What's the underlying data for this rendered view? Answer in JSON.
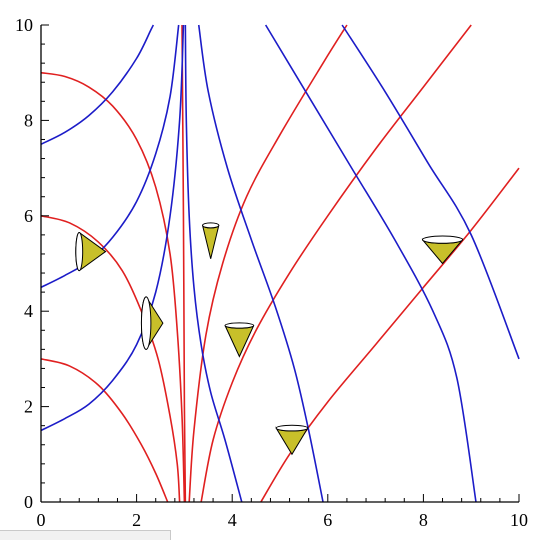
{
  "chart_data": {
    "type": "line",
    "title": "",
    "xlabel": "",
    "ylabel": "",
    "xlim": [
      0,
      10
    ],
    "ylim": [
      0,
      10
    ],
    "xticks": [
      0,
      2,
      4,
      6,
      8,
      10
    ],
    "yticks": [
      0,
      2,
      4,
      6,
      8,
      10
    ],
    "x_tick_labels": [
      "0",
      "2",
      "4",
      "6",
      "8",
      "10"
    ],
    "y_tick_labels": [
      "0",
      "2",
      "4",
      "6",
      "8",
      "10"
    ],
    "grid": false,
    "colors": {
      "red": "#e02020",
      "blue": "#1c1cc8",
      "cone_fill": "#c8c02a"
    },
    "series": [
      {
        "color": "red",
        "points": [
          [
            0,
            9.0
          ],
          [
            0.5,
            8.92
          ],
          [
            1,
            8.7
          ],
          [
            1.5,
            8.3
          ],
          [
            2,
            7.6
          ],
          [
            2.4,
            6.6
          ],
          [
            2.7,
            5.2
          ],
          [
            2.85,
            3.6
          ],
          [
            2.95,
            1.8
          ],
          [
            3.0,
            0
          ]
        ]
      },
      {
        "color": "red",
        "points": [
          [
            0,
            6.0
          ],
          [
            0.6,
            5.85
          ],
          [
            1.2,
            5.45
          ],
          [
            1.7,
            4.85
          ],
          [
            2.1,
            4.0
          ],
          [
            2.45,
            3.0
          ],
          [
            2.7,
            1.8
          ],
          [
            2.85,
            0.8
          ],
          [
            2.9,
            0
          ]
        ]
      },
      {
        "color": "red",
        "points": [
          [
            0,
            3.0
          ],
          [
            0.6,
            2.85
          ],
          [
            1.2,
            2.45
          ],
          [
            1.7,
            1.85
          ],
          [
            2.1,
            1.2
          ],
          [
            2.4,
            0.6
          ],
          [
            2.65,
            0
          ]
        ]
      },
      {
        "color": "red",
        "points": [
          [
            2.95,
            10.0
          ],
          [
            2.98,
            6.0
          ],
          [
            3.0,
            2.0
          ],
          [
            3.02,
            0
          ]
        ]
      },
      {
        "color": "red",
        "points": [
          [
            3.1,
            0
          ],
          [
            3.2,
            1.5
          ],
          [
            3.45,
            3.5
          ],
          [
            3.8,
            5.0
          ],
          [
            4.3,
            6.4
          ],
          [
            5.0,
            7.7
          ],
          [
            5.9,
            9.2
          ],
          [
            6.4,
            10.0
          ]
        ]
      },
      {
        "color": "red",
        "points": [
          [
            3.35,
            0
          ],
          [
            3.6,
            1.3
          ],
          [
            4.0,
            2.5
          ],
          [
            4.5,
            3.6
          ],
          [
            5.2,
            4.8
          ],
          [
            6.0,
            6.0
          ],
          [
            7.0,
            7.4
          ],
          [
            8.0,
            8.7
          ],
          [
            9.0,
            10.0
          ]
        ]
      },
      {
        "color": "red",
        "points": [
          [
            4.6,
            0
          ],
          [
            5.2,
            1.0
          ],
          [
            6.0,
            2.1
          ],
          [
            7.0,
            3.3
          ],
          [
            8.0,
            4.5
          ],
          [
            9.0,
            5.7
          ],
          [
            10.0,
            7.0
          ]
        ]
      },
      {
        "color": "blue",
        "points": [
          [
            0,
            7.5
          ],
          [
            0.5,
            7.75
          ],
          [
            1.0,
            8.1
          ],
          [
            1.5,
            8.6
          ],
          [
            2.0,
            9.3
          ],
          [
            2.3,
            9.9
          ],
          [
            2.35,
            10.0
          ]
        ]
      },
      {
        "color": "blue",
        "points": [
          [
            0,
            4.5
          ],
          [
            0.5,
            4.75
          ],
          [
            1.0,
            5.05
          ],
          [
            1.5,
            5.55
          ],
          [
            2.0,
            6.3
          ],
          [
            2.4,
            7.3
          ],
          [
            2.7,
            8.5
          ],
          [
            2.88,
            10.0
          ]
        ]
      },
      {
        "color": "blue",
        "points": [
          [
            0,
            1.5
          ],
          [
            0.5,
            1.75
          ],
          [
            1.0,
            2.05
          ],
          [
            1.5,
            2.55
          ],
          [
            2.0,
            3.3
          ],
          [
            2.4,
            4.4
          ],
          [
            2.7,
            6.0
          ],
          [
            2.9,
            8.0
          ],
          [
            2.98,
            10.0
          ]
        ]
      },
      {
        "color": "blue",
        "points": [
          [
            3.02,
            10.0
          ],
          [
            3.04,
            8.0
          ],
          [
            3.1,
            6.0
          ],
          [
            3.2,
            4.5
          ],
          [
            3.35,
            3.3
          ],
          [
            3.55,
            2.3
          ],
          [
            3.85,
            1.3
          ],
          [
            4.2,
            0
          ]
        ]
      },
      {
        "color": "blue",
        "points": [
          [
            3.3,
            10.0
          ],
          [
            3.5,
            8.6
          ],
          [
            3.9,
            7.0
          ],
          [
            4.4,
            5.5
          ],
          [
            4.9,
            4.1
          ],
          [
            5.3,
            2.8
          ],
          [
            5.6,
            1.5
          ],
          [
            5.9,
            0
          ]
        ]
      },
      {
        "color": "blue",
        "points": [
          [
            4.7,
            10.0
          ],
          [
            5.6,
            8.5
          ],
          [
            6.5,
            7.0
          ],
          [
            7.4,
            5.5
          ],
          [
            8.2,
            4.0
          ],
          [
            8.7,
            2.6
          ],
          [
            9.1,
            0
          ]
        ]
      },
      {
        "color": "blue",
        "points": [
          [
            6.3,
            10.0
          ],
          [
            7.2,
            8.6
          ],
          [
            8.1,
            7.1
          ],
          [
            9.0,
            5.6
          ],
          [
            10.0,
            3.0
          ]
        ]
      }
    ],
    "cones": [
      {
        "apex": [
          1.35,
          5.25
        ],
        "base_center": [
          0.8,
          5.25
        ],
        "half_width": 0.4,
        "orientation": "horizontal"
      },
      {
        "apex": [
          2.55,
          3.75
        ],
        "base_center": [
          2.2,
          3.75
        ],
        "half_width": 0.55,
        "orientation": "horizontal"
      },
      {
        "apex": [
          3.55,
          5.1
        ],
        "base_center": [
          3.55,
          5.8
        ],
        "half_width": 0.17,
        "orientation": "vertical"
      },
      {
        "apex": [
          4.15,
          3.05
        ],
        "base_center": [
          4.15,
          3.7
        ],
        "half_width": 0.3,
        "orientation": "vertical"
      },
      {
        "apex": [
          5.25,
          1.0
        ],
        "base_center": [
          5.25,
          1.55
        ],
        "half_width": 0.33,
        "orientation": "vertical"
      },
      {
        "apex": [
          8.4,
          5.0
        ],
        "base_center": [
          8.4,
          5.5
        ],
        "half_width": 0.42,
        "orientation": "vertical"
      }
    ]
  }
}
